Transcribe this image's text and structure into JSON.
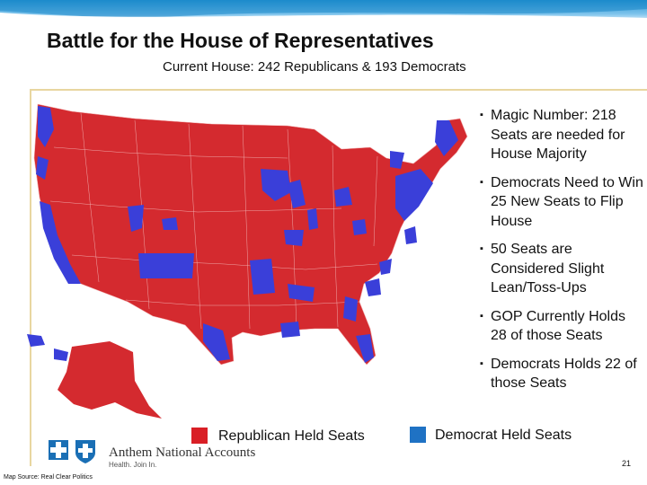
{
  "slide": {
    "title": "Battle for the House of Representatives",
    "subtitle": "Current House: 242 Republicans & 193 Democrats",
    "bullets": [
      "Magic Number: 218 Seats are needed for House Majority",
      "Democrats Need to Win 25 New Seats to Flip House",
      "50 Seats are Considered Slight Lean/Toss-Ups",
      "GOP Currently Holds 28 of those Seats",
      "Democrats Holds 22 of those Seats"
    ],
    "bullet_mark": "▪",
    "legend": {
      "republican_label": "Republican Held Seats",
      "republican_color": "#d91f26",
      "democrat_label": "Democrat Held Seats",
      "democrat_color": "#1f72c4"
    },
    "map_colors": {
      "republican": "#d42a2f",
      "democrat": "#3a3fd9",
      "border": "#f2b7b7"
    },
    "logo": {
      "name": "Anthem National Accounts",
      "tagline": "Health. Join In.",
      "icon": "blue-cross-blue-shield-icon"
    },
    "page_number": "21",
    "source": "Map Source: Real Clear Politics"
  }
}
